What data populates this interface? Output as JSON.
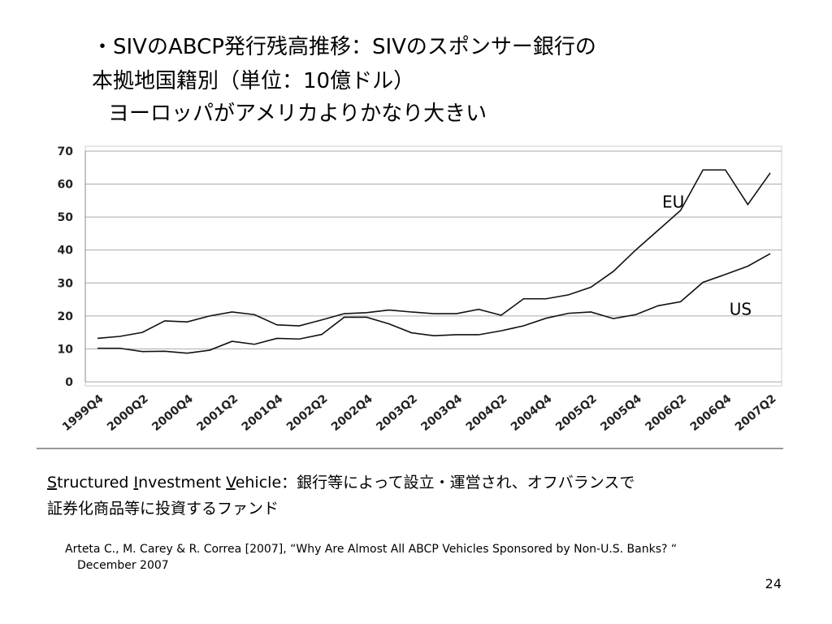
{
  "slide": {
    "title_lines": [
      "・SIVのABCP発行残高推移：SIVのスポンサー銀行の",
      "本拠地国籍別（単位：10億ドル）",
      "ヨーロッパがアメリカよりかなり大きい"
    ],
    "description": {
      "line1": [
        "S",
        "tructured ",
        "I",
        "nvestment ",
        "V",
        "ehicle：銀行等によって設立・運営され、オフバランスで"
      ],
      "line2": "証券化商品等に投資するファンド"
    },
    "citation": [
      "Arteta C., M. Carey & R. Correa [2007], “Why Are Almost All ABCP Vehicles Sponsored by Non-U.S. Banks? “",
      "December 2007"
    ],
    "page_number": "24"
  },
  "chart_data": {
    "type": "line",
    "categories": [
      "1999Q4",
      null,
      "2000Q2",
      null,
      "2000Q4",
      null,
      "2001Q2",
      null,
      "2001Q4",
      null,
      "2002Q2",
      null,
      "2002Q4",
      null,
      "2003Q2",
      null,
      "2003Q4",
      null,
      "2004Q2",
      null,
      "2004Q4",
      null,
      "2005Q2",
      null,
      "2005Q4",
      null,
      "2006Q2",
      null,
      "2006Q4",
      null,
      "2007Q2"
    ],
    "series": [
      {
        "name": "EU",
        "color": "#111111",
        "values": [
          13.2,
          13.8,
          15,
          18.5,
          18.2,
          20,
          21.2,
          20.4,
          17.3,
          17,
          18.8,
          20.7,
          21,
          21.8,
          21.2,
          20.7,
          20.7,
          22,
          20.2,
          25.2,
          25.2,
          26.4,
          28.7,
          33.5,
          40,
          46,
          52,
          64.3,
          64.3,
          53.8,
          63.4
        ]
      },
      {
        "name": "US",
        "color": "#111111",
        "values": [
          10.2,
          10.2,
          9.2,
          9.3,
          8.7,
          9.6,
          12.3,
          11.4,
          13.2,
          13,
          14.4,
          19.6,
          19.6,
          17.6,
          14.9,
          14,
          14.3,
          14.3,
          15.5,
          17,
          19.3,
          20.8,
          21.2,
          19.2,
          20.4,
          23.1,
          24.3,
          30.2,
          32.6,
          35.1,
          38.9
        ]
      }
    ],
    "ylim": [
      0,
      70
    ],
    "yticks": [
      0,
      10,
      20,
      30,
      40,
      50,
      60,
      70
    ],
    "grid": true
  }
}
